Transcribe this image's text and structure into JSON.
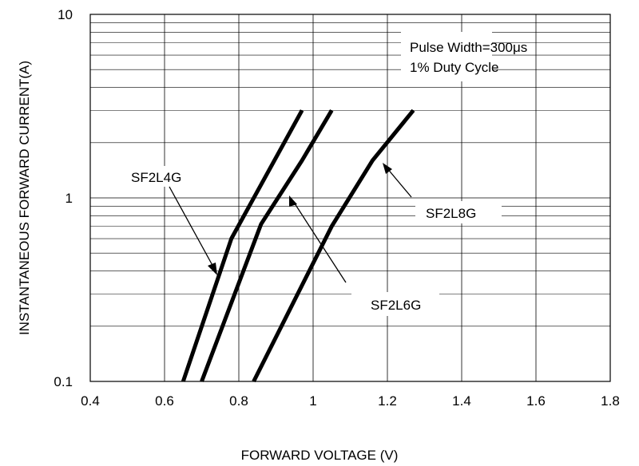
{
  "chart_data": {
    "type": "line",
    "title": "",
    "xlabel": "FORWARD VOLTAGE (V)",
    "ylabel": "INSTANTANEOUS FORWARD CURRENT(A)",
    "xlim": [
      0.4,
      1.8
    ],
    "ylim": [
      0.1,
      10
    ],
    "yscale": "log",
    "grid": true,
    "x_ticks": [
      "0.4",
      "0.6",
      "0.8",
      "1",
      "1.2",
      "1.4",
      "1.6",
      "1.8"
    ],
    "y_ticks": [
      "10",
      "1",
      "0.1"
    ],
    "annotation": [
      "Pulse Width=300μs",
      "1% Duty Cycle"
    ],
    "series": [
      {
        "name": "SF2L4G",
        "x": [
          0.65,
          0.78,
          0.88,
          0.97
        ],
        "y": [
          0.1,
          0.6,
          1.4,
          3
        ]
      },
      {
        "name": "SF2L6G",
        "x": [
          0.7,
          0.86,
          0.97,
          1.05
        ],
        "y": [
          0.1,
          0.72,
          1.6,
          3
        ]
      },
      {
        "name": "SF2L8G",
        "x": [
          0.84,
          1.05,
          1.16,
          1.27
        ],
        "y": [
          0.1,
          0.7,
          1.6,
          3
        ]
      }
    ]
  }
}
